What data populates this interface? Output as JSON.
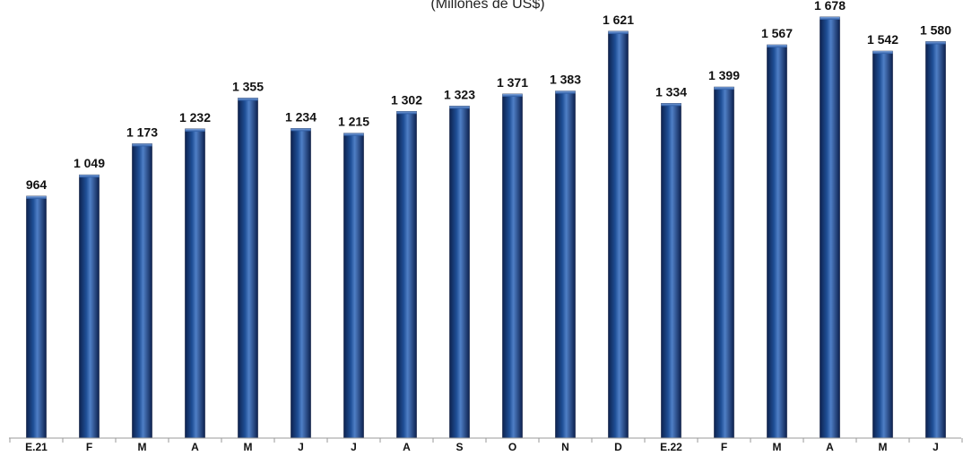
{
  "chart_data": {
    "type": "bar",
    "title": "",
    "subtitle": "(Millones de US$)",
    "xlabel": "",
    "ylabel": "",
    "categories": [
      "E.21",
      "F",
      "M",
      "A",
      "M",
      "J",
      "J",
      "A",
      "S",
      "O",
      "N",
      "D",
      "E.22",
      "F",
      "M",
      "A",
      "M",
      "J"
    ],
    "values": [
      964,
      1049,
      1173,
      1232,
      1355,
      1234,
      1215,
      1302,
      1323,
      1371,
      1383,
      1621,
      1334,
      1399,
      1567,
      1678,
      1542,
      1580
    ],
    "value_labels": [
      "964",
      "1 049",
      "1 173",
      "1 232",
      "1 355",
      "1 234",
      "1 215",
      "1 302",
      "1 323",
      "1 371",
      "1 383",
      "1 621",
      "1 334",
      "1 399",
      "1 567",
      "1 678",
      "1 542",
      "1 580"
    ],
    "ylim": [
      0,
      1710
    ],
    "grid": false,
    "legend": "none",
    "colors": {
      "bar_dark": "#0d2250",
      "bar_mid": "#1f4f96",
      "bar_light": "#4f7fc6",
      "axis": "#9a9a9a"
    }
  }
}
